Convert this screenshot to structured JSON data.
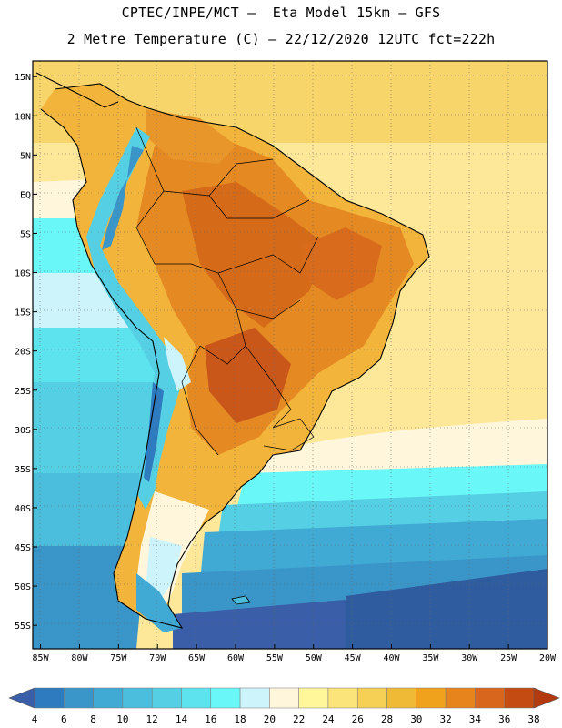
{
  "title_line1": "CPTEC/INPE/MCT –  Eta Model 15km – GFS",
  "title_line2": "2 Metre Temperature (C) – 22/12/2020 12UTC fct=222h",
  "chart_data": {
    "type": "heatmap",
    "variable": "2 Metre Temperature",
    "units": "C",
    "lat_range": [
      -58,
      17
    ],
    "lon_range": [
      -86,
      -20
    ],
    "lat_ticks": [
      "15N",
      "10N",
      "5N",
      "EQ",
      "5S",
      "10S",
      "15S",
      "20S",
      "25S",
      "30S",
      "35S",
      "40S",
      "45S",
      "50S",
      "55S"
    ],
    "lat_values": [
      15,
      10,
      5,
      0,
      -5,
      -10,
      -15,
      -20,
      -25,
      -30,
      -35,
      -40,
      -45,
      -50,
      -55
    ],
    "lon_ticks": [
      "85W",
      "80W",
      "75W",
      "70W",
      "65W",
      "60W",
      "55W",
      "50W",
      "45W",
      "40W",
      "35W",
      "30W",
      "25W",
      "20W"
    ],
    "lon_values": [
      -85,
      -80,
      -75,
      -70,
      -65,
      -60,
      -55,
      -50,
      -45,
      -40,
      -35,
      -30,
      -25,
      -20
    ],
    "colorbar": {
      "levels": [
        4,
        6,
        8,
        10,
        12,
        14,
        16,
        18,
        20,
        22,
        24,
        26,
        28,
        30,
        32,
        34,
        36,
        38
      ],
      "colors": [
        "#3a5fa8",
        "#2f7bbf",
        "#3a96c9",
        "#40a9d4",
        "#4bbddd",
        "#55cfe3",
        "#5de3ee",
        "#6af7f7",
        "#cdf3fb",
        "#fff6dc",
        "#fff799",
        "#fbe47a",
        "#f6cf55",
        "#efba35",
        "#f1a21d",
        "#e8841c",
        "#d8661c",
        "#c44c12",
        "#b23a0e"
      ]
    },
    "grid": true
  }
}
